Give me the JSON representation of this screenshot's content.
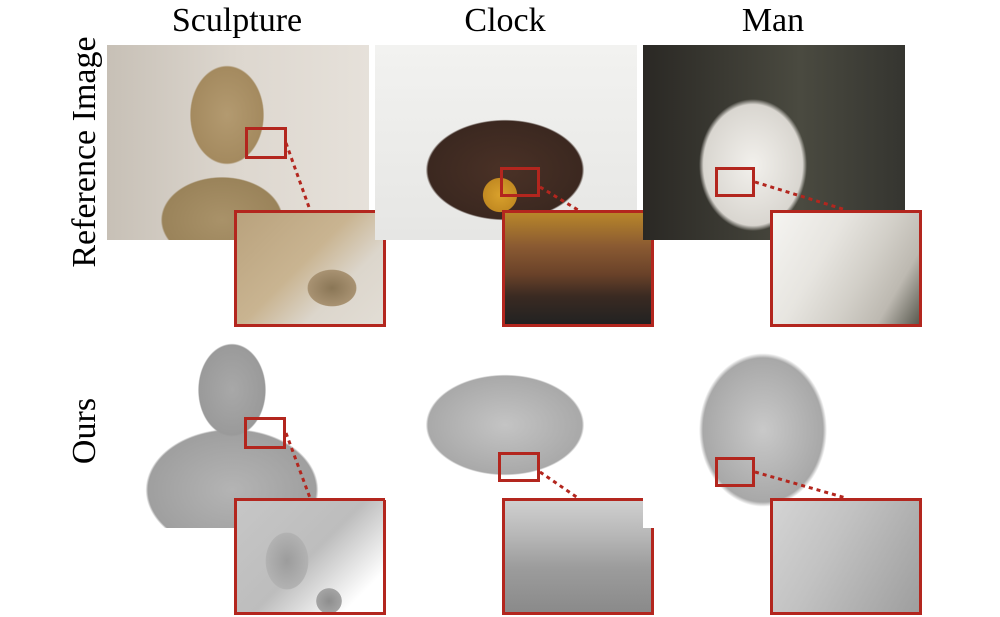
{
  "columns": {
    "sculpture": "Sculpture",
    "clock": "Clock",
    "man": "Man"
  },
  "rows": {
    "reference": "Reference Image",
    "ours": "Ours"
  },
  "colors": {
    "highlight": "#b3261e"
  }
}
